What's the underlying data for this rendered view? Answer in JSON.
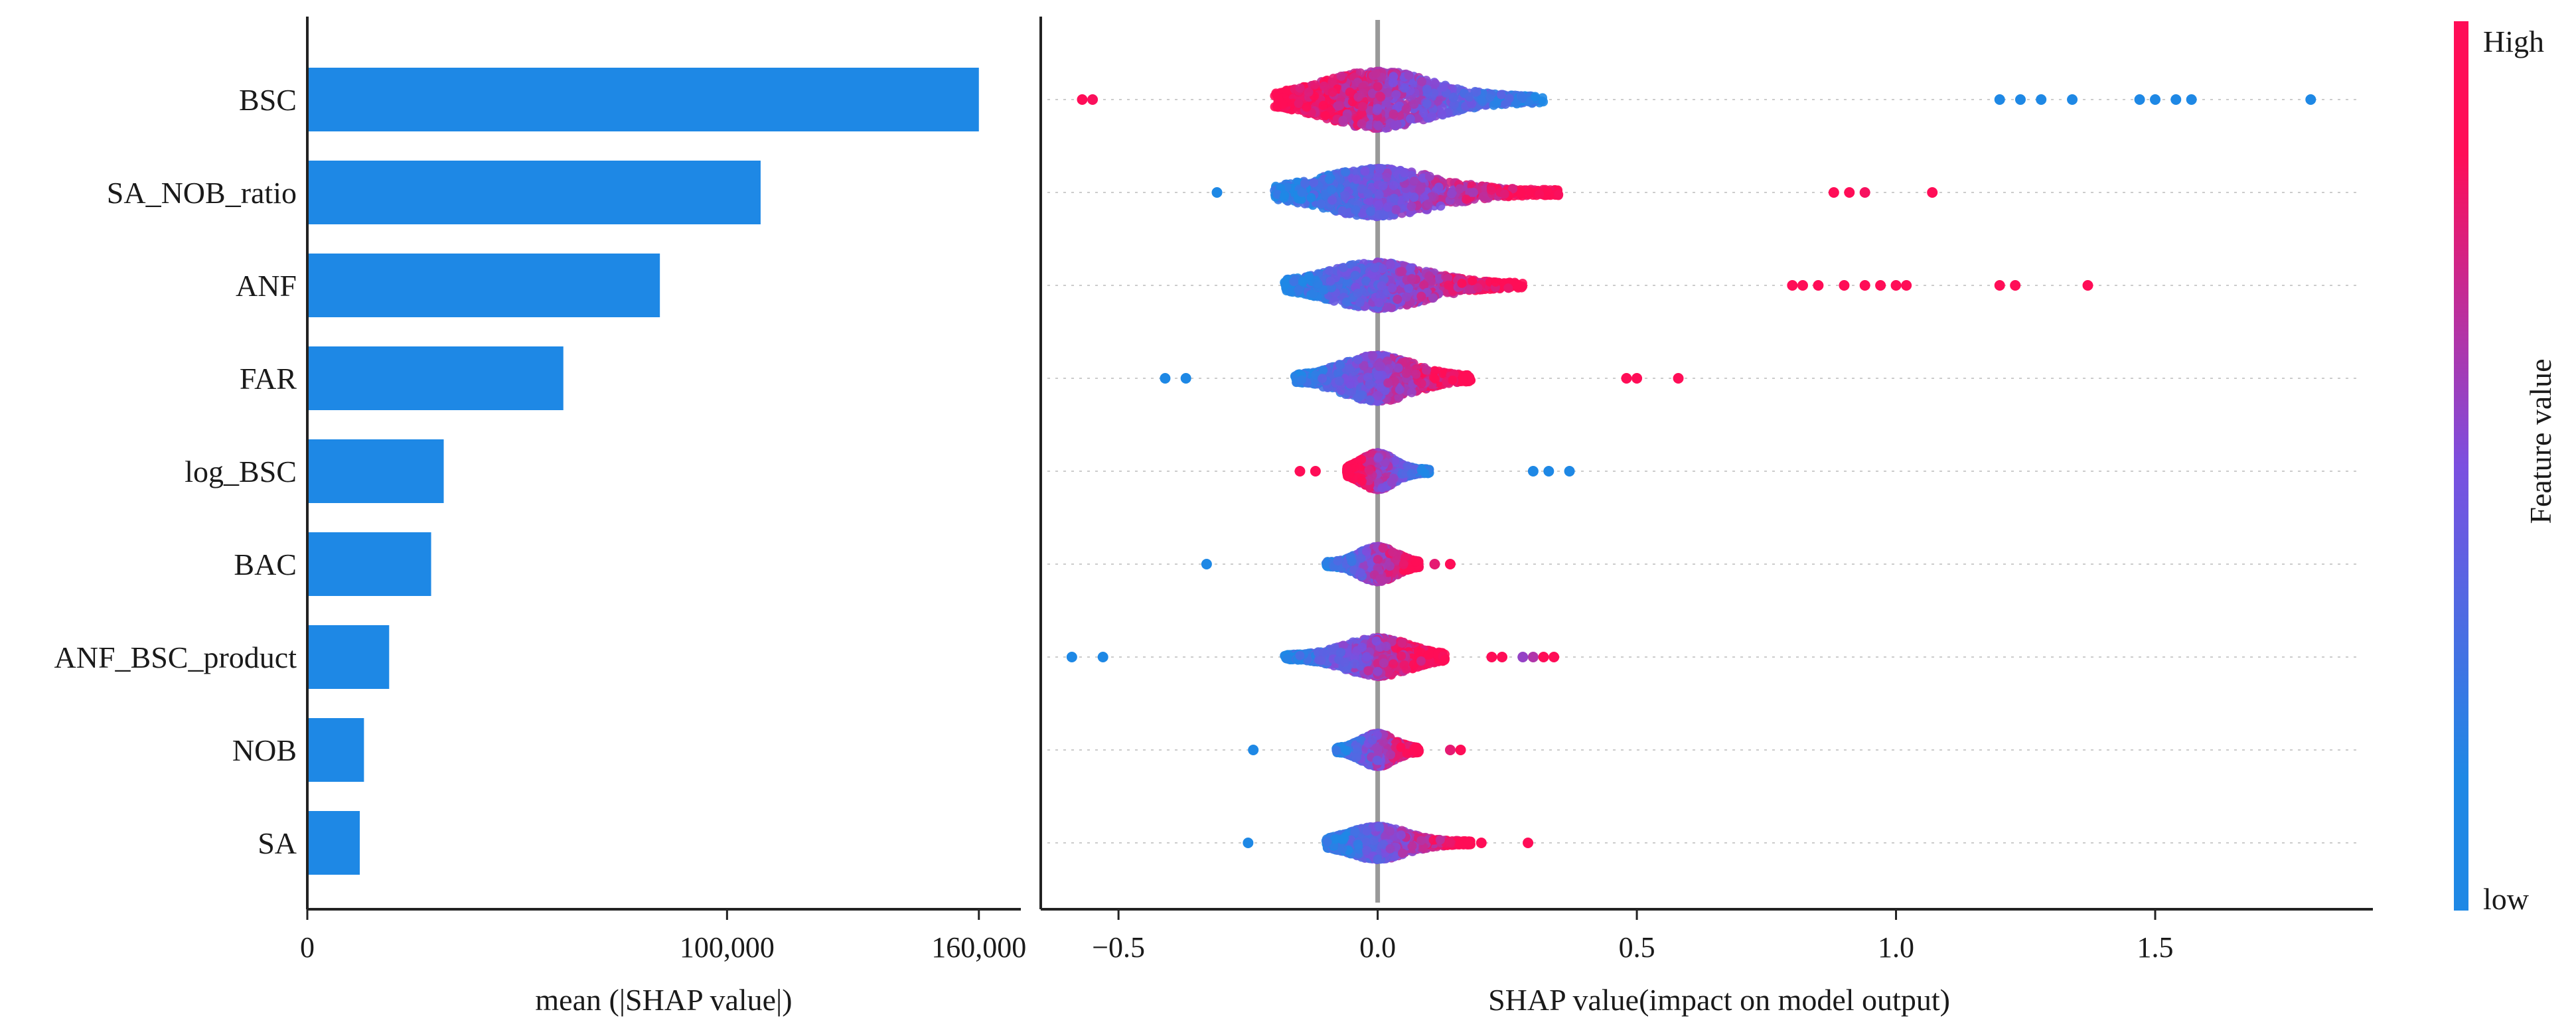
{
  "chart_data": [
    {
      "type": "bar",
      "orientation": "horizontal",
      "title": "",
      "xlabel": "mean (|SHAP value|)",
      "ylabel": "",
      "xlim": [
        0,
        170000
      ],
      "xticks": [
        0,
        100000,
        160000
      ],
      "xtick_labels": [
        "0",
        "100,000",
        "160,000"
      ],
      "categories": [
        "BSC",
        "SA_NOB_ratio",
        "ANF",
        "FAR",
        "log_BSC",
        "BAC",
        "ANF_BSC_product",
        "NOB",
        "SA"
      ],
      "values": [
        160000,
        108000,
        84000,
        61000,
        32500,
        29500,
        19500,
        13500,
        12500
      ],
      "color": "#1e88e5"
    },
    {
      "type": "scatter",
      "subtype": "beeswarm",
      "title": "",
      "xlabel": "SHAP value(impact on model output)",
      "ylabel": "",
      "xlim": [
        -0.65,
        1.92
      ],
      "xticks": [
        -0.5,
        0.0,
        0.5,
        1.0,
        1.5
      ],
      "xtick_labels": [
        "−0.5",
        "0.0",
        "0.5",
        "1.0",
        "1.5"
      ],
      "zero_line": 0.0,
      "features": [
        {
          "name": "BSC",
          "min": -0.57,
          "max": 1.8,
          "core_min": -0.2,
          "core_max": 0.32,
          "core_width": 0.62,
          "low_side": "right",
          "outliers": [
            {
              "x": -0.57,
              "c": 1
            },
            {
              "x": -0.55,
              "c": 0.98
            },
            {
              "x": 1.2,
              "c": 0
            },
            {
              "x": 1.24,
              "c": 0
            },
            {
              "x": 1.28,
              "c": 0
            },
            {
              "x": 1.34,
              "c": 0
            },
            {
              "x": 1.47,
              "c": 0
            },
            {
              "x": 1.5,
              "c": 0
            },
            {
              "x": 1.54,
              "c": 0
            },
            {
              "x": 1.57,
              "c": 0
            },
            {
              "x": 1.8,
              "c": 0
            }
          ]
        },
        {
          "name": "SA_NOB_ratio",
          "min": -0.31,
          "max": 1.07,
          "core_min": -0.2,
          "core_max": 0.35,
          "core_width": 0.52,
          "low_side": "left",
          "outliers": [
            {
              "x": -0.31,
              "c": 0
            },
            {
              "x": 0.88,
              "c": 1
            },
            {
              "x": 0.91,
              "c": 1
            },
            {
              "x": 0.94,
              "c": 0.97
            },
            {
              "x": 1.07,
              "c": 1
            }
          ]
        },
        {
          "name": "ANF",
          "min": -0.2,
          "max": 1.37,
          "core_min": -0.18,
          "core_max": 0.28,
          "core_width": 0.5,
          "low_side": "left",
          "outliers": [
            {
              "x": 0.8,
              "c": 1
            },
            {
              "x": 0.82,
              "c": 1
            },
            {
              "x": 0.85,
              "c": 1
            },
            {
              "x": 0.9,
              "c": 1
            },
            {
              "x": 0.94,
              "c": 1
            },
            {
              "x": 0.97,
              "c": 1
            },
            {
              "x": 1.0,
              "c": 1
            },
            {
              "x": 1.02,
              "c": 1
            },
            {
              "x": 1.2,
              "c": 1
            },
            {
              "x": 1.23,
              "c": 1
            },
            {
              "x": 1.37,
              "c": 1
            }
          ]
        },
        {
          "name": "FAR",
          "min": -0.41,
          "max": 0.58,
          "core_min": -0.16,
          "core_max": 0.18,
          "core_width": 0.5,
          "low_side": "left",
          "outliers": [
            {
              "x": -0.41,
              "c": 0
            },
            {
              "x": -0.37,
              "c": 0
            },
            {
              "x": 0.48,
              "c": 1
            },
            {
              "x": 0.5,
              "c": 1
            },
            {
              "x": 0.58,
              "c": 1
            }
          ]
        },
        {
          "name": "log_BSC",
          "min": -0.15,
          "max": 0.37,
          "core_min": -0.06,
          "core_max": 0.1,
          "core_width": 0.4,
          "low_side": "right",
          "outliers": [
            {
              "x": -0.15,
              "c": 1
            },
            {
              "x": -0.12,
              "c": 1
            },
            {
              "x": 0.3,
              "c": 0
            },
            {
              "x": 0.33,
              "c": 0
            },
            {
              "x": 0.37,
              "c": 0
            }
          ]
        },
        {
          "name": "BAC",
          "min": -0.33,
          "max": 0.14,
          "core_min": -0.1,
          "core_max": 0.08,
          "core_width": 0.38,
          "low_side": "left",
          "outliers": [
            {
              "x": -0.33,
              "c": 0
            },
            {
              "x": 0.11,
              "c": 0.9
            },
            {
              "x": 0.14,
              "c": 1
            }
          ]
        },
        {
          "name": "ANF_BSC_product",
          "min": -0.59,
          "max": 0.34,
          "core_min": -0.18,
          "core_max": 0.13,
          "core_width": 0.42,
          "low_side": "left",
          "outliers": [
            {
              "x": -0.59,
              "c": 0
            },
            {
              "x": -0.53,
              "c": 0
            },
            {
              "x": 0.22,
              "c": 1
            },
            {
              "x": 0.24,
              "c": 1
            },
            {
              "x": 0.28,
              "c": 0.6
            },
            {
              "x": 0.3,
              "c": 0.7
            },
            {
              "x": 0.32,
              "c": 1
            },
            {
              "x": 0.34,
              "c": 1
            }
          ]
        },
        {
          "name": "NOB",
          "min": -0.24,
          "max": 0.16,
          "core_min": -0.08,
          "core_max": 0.08,
          "core_width": 0.36,
          "low_side": "left",
          "outliers": [
            {
              "x": -0.24,
              "c": 0
            },
            {
              "x": 0.14,
              "c": 0.9
            },
            {
              "x": 0.16,
              "c": 1
            }
          ]
        },
        {
          "name": "SA",
          "min": -0.25,
          "max": 0.29,
          "core_min": -0.1,
          "core_max": 0.18,
          "core_width": 0.36,
          "low_side": "left",
          "outliers": [
            {
              "x": -0.25,
              "c": 0
            },
            {
              "x": 0.2,
              "c": 1
            },
            {
              "x": 0.29,
              "c": 1
            }
          ]
        }
      ],
      "colormap": {
        "low": "#1e88e5",
        "high": "#ff0d57"
      }
    }
  ],
  "colorbar": {
    "label": "Feature value",
    "high_label": "High",
    "low_label": "low",
    "low_color": "#1e88e5",
    "high_color": "#ff0d57"
  }
}
